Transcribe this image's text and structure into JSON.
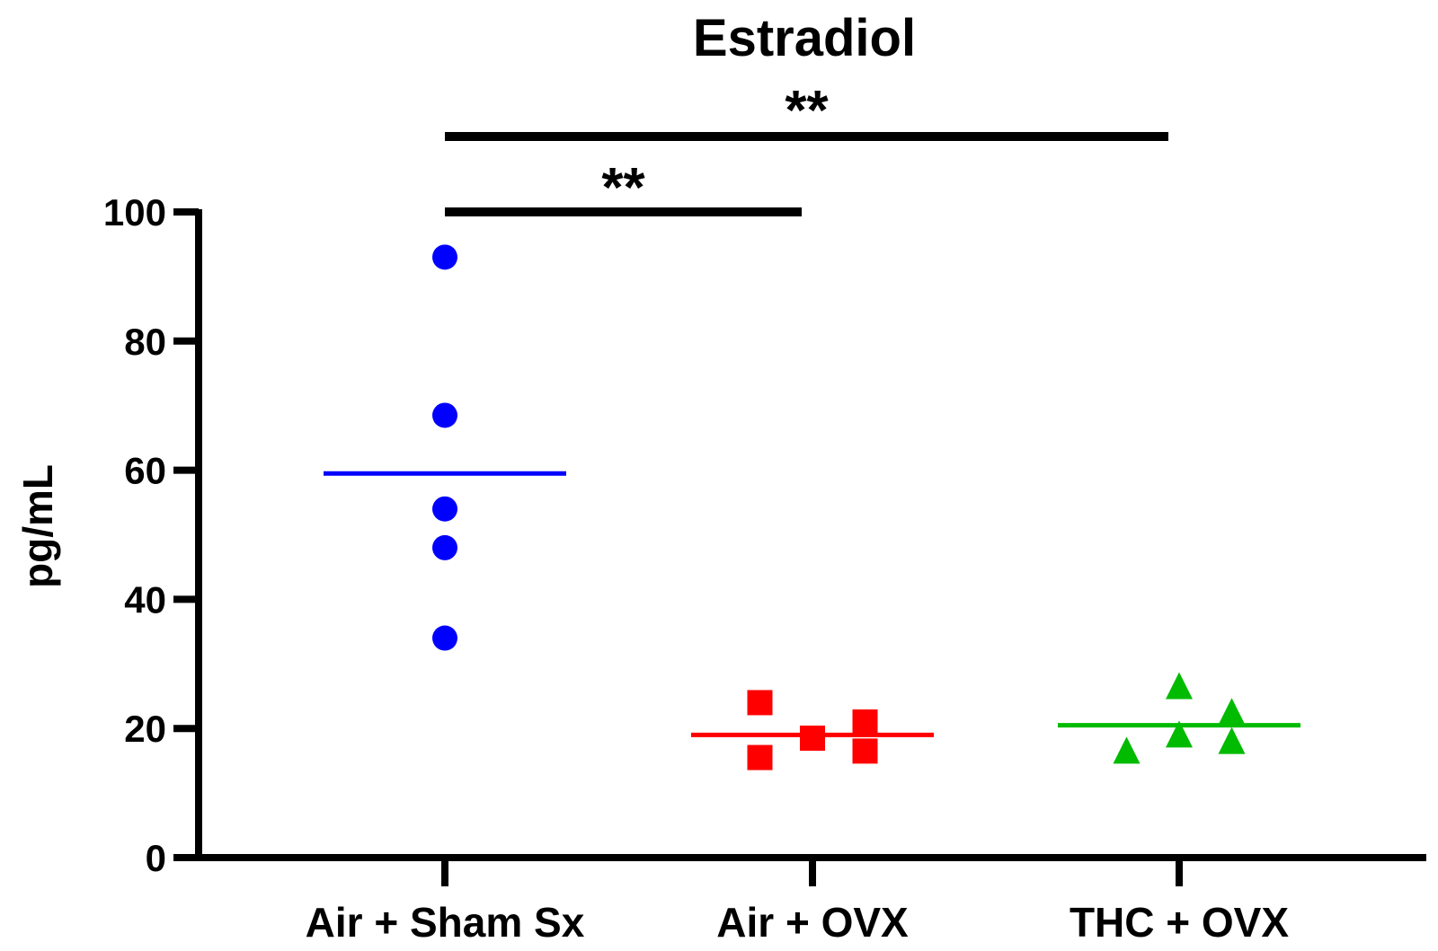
{
  "chart_data": {
    "type": "scatter",
    "title": "Estradiol",
    "xlabel": "",
    "ylabel": "pg/mL",
    "ylim": [
      0,
      100
    ],
    "yticks": [
      0,
      20,
      40,
      60,
      80,
      100
    ],
    "ytick_labels": [
      "0",
      "20",
      "40",
      "60",
      "80",
      "100"
    ],
    "categories": [
      "Air + Sham Sx",
      "Air + OVX",
      "THC + OVX"
    ],
    "grid": false,
    "series": [
      {
        "category": "Air + Sham Sx",
        "color": "#0000ff",
        "marker": "circle",
        "points": [
          {
            "offset": 0,
            "value": 93
          },
          {
            "offset": 0,
            "value": 68.5
          },
          {
            "offset": 0,
            "value": 54
          },
          {
            "offset": 0,
            "value": 48
          },
          {
            "offset": 0,
            "value": 34
          }
        ],
        "mean": 59.5
      },
      {
        "category": "Air + OVX",
        "color": "#ff0000",
        "marker": "square",
        "points": [
          {
            "offset": -0.15,
            "value": 24
          },
          {
            "offset": -0.15,
            "value": 15.5
          },
          {
            "offset": 0,
            "value": 18.5
          },
          {
            "offset": 0.15,
            "value": 21
          },
          {
            "offset": 0.15,
            "value": 16.5
          }
        ],
        "mean": 19
      },
      {
        "category": "THC + OVX",
        "color": "#00bb00",
        "marker": "triangle",
        "points": [
          {
            "offset": -0.15,
            "value": 16.5
          },
          {
            "offset": 0,
            "value": 26.5
          },
          {
            "offset": 0,
            "value": 19
          },
          {
            "offset": 0.15,
            "value": 22.5
          },
          {
            "offset": 0.15,
            "value": 18
          }
        ],
        "mean": 20.5
      }
    ],
    "annotations": [
      {
        "from": 0,
        "to": 1,
        "label": "**"
      },
      {
        "from": 0,
        "to": 2,
        "label": "**"
      }
    ]
  }
}
